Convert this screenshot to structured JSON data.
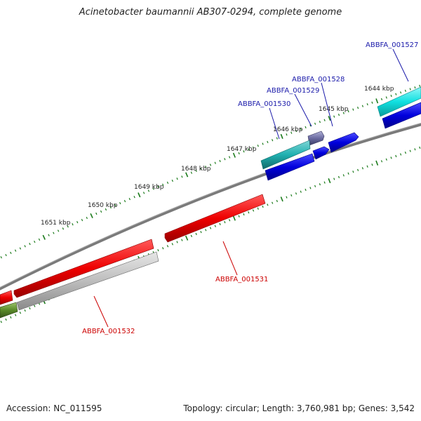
{
  "title": "Acinetobacter baumannii AB307-0294, complete genome",
  "footer": {
    "accession": "Accession: NC_011595",
    "summary": "Topology: circular; Length: 3,760,981 bp; Genes: 3,542"
  },
  "colors": {
    "backbone": "#7f7f7f",
    "tick": "#1a7a1a",
    "forward_gene": "#0000dd",
    "forward_label": "#1a1aaa",
    "reverse_gene": "#ee0000",
    "reverse_label": "#cc0000",
    "cyan_gene": "#10d0d0",
    "teal_gene": "#20b0b0",
    "grey_gene": "#b8b8b8",
    "olive_gene": "#5a8a2a",
    "purple_gene": "#6a6aa0"
  },
  "kbp_labels": [
    "1644 kbp",
    "1645 kbp",
    "1646 kbp",
    "1647 kbp",
    "1648 kbp",
    "1649 kbp",
    "1650 kbp",
    "1651 kbp"
  ],
  "gene_labels": {
    "g1527": "ABBFA_001527",
    "g1528": "ABBFA_001528",
    "g1529": "ABBFA_001529",
    "g1530": "ABBFA_001530",
    "g1531": "ABBFA_001531",
    "g1532": "ABBFA_001532"
  }
}
